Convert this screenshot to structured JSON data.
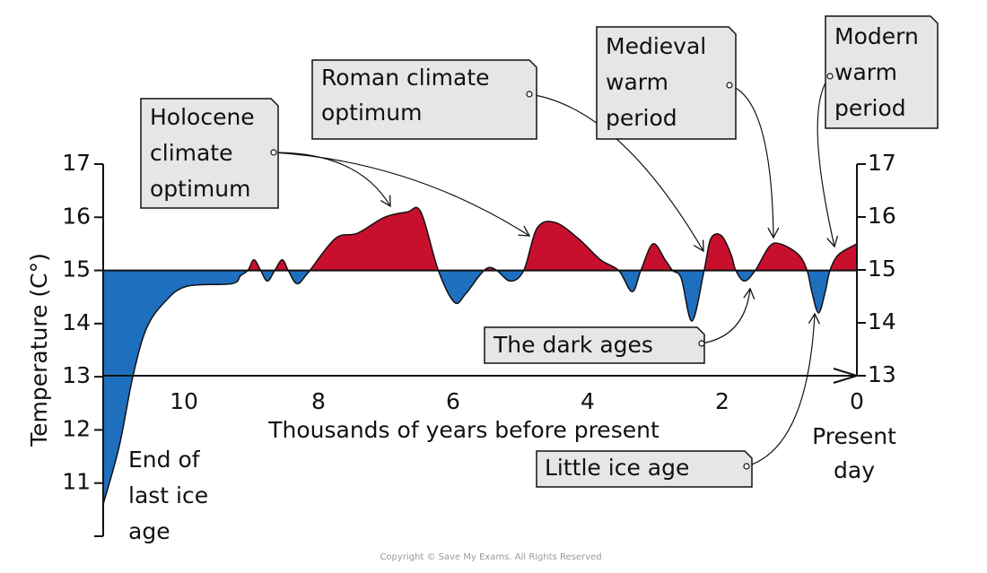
{
  "chart_data": {
    "type": "area",
    "y_label": "Temperature (C°)",
    "x_label": "Thousands of years before present",
    "x": [
      11.2,
      10.96,
      10.76,
      10.56,
      10.29,
      9.96,
      9.29,
      9.16,
      9.05,
      8.96,
      8.86,
      8.76,
      8.65,
      8.54,
      8.45,
      8.32,
      8.16,
      7.75,
      7.42,
      7.02,
      6.68,
      6.48,
      6.22,
      5.98,
      5.82,
      5.61,
      5.48,
      5.35,
      5.15,
      4.95,
      4.75,
      4.48,
      4.14,
      3.81,
      3.54,
      3.34,
      3.21,
      3.03,
      2.85,
      2.74,
      2.61,
      2.45,
      2.27,
      2.17,
      2.01,
      1.87,
      1.8,
      1.67,
      1.51,
      1.3,
      1.14,
      0.87,
      0.74,
      0.67,
      0.57,
      0.47,
      0.4,
      0.27,
      0
    ],
    "values": [
      10.6,
      11.7,
      13.0,
      13.9,
      14.4,
      14.7,
      14.75,
      14.9,
      15.0,
      15.2,
      15.0,
      14.8,
      15.0,
      15.2,
      15.0,
      14.75,
      14.95,
      15.6,
      15.7,
      16.0,
      16.1,
      16.1,
      15.0,
      14.4,
      14.55,
      14.9,
      15.05,
      15.0,
      14.8,
      15.0,
      15.8,
      15.9,
      15.6,
      15.2,
      15.0,
      14.6,
      15.0,
      15.5,
      15.2,
      15.0,
      14.85,
      14.05,
      15.0,
      15.6,
      15.65,
      15.3,
      15.0,
      14.8,
      15.0,
      15.45,
      15.5,
      15.3,
      15.0,
      14.6,
      14.2,
      14.6,
      15.0,
      15.3,
      15.5
    ],
    "baseline": 15,
    "above_color": "#c8102e",
    "below_color": "#1f6fbf",
    "xlim": [
      11.2,
      0
    ],
    "xticks": [
      10,
      8,
      6,
      4,
      2,
      0
    ],
    "ylim": [
      10,
      17
    ],
    "yticks": [
      11,
      12,
      13,
      14,
      15,
      16,
      17
    ],
    "y2lim": [
      13,
      17
    ],
    "y2ticks": [
      13,
      14,
      15,
      16,
      17
    ],
    "start_label": [
      "End of",
      "last ice",
      "age"
    ],
    "end_label": [
      "Present",
      "day"
    ],
    "annotations": [
      {
        "lines": [
          "Holocene",
          "climate",
          "optimum"
        ]
      },
      {
        "lines": [
          "Roman climate",
          "optimum"
        ]
      },
      {
        "lines": [
          "Medieval",
          "warm",
          "period"
        ]
      },
      {
        "lines": [
          "Modern",
          "warm",
          "period"
        ]
      },
      {
        "lines": [
          "The dark ages"
        ]
      },
      {
        "lines": [
          "Little ice age"
        ]
      }
    ],
    "copyright": "Copyright © Save My Exams. All Rights Reserved"
  }
}
